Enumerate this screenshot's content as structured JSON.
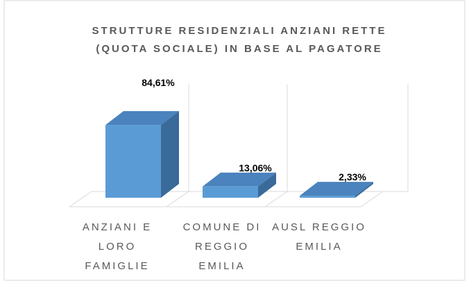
{
  "chart_data": {
    "type": "bar3d",
    "title": "STRUTTURE RESIDENZIALI ANZIANI RETTE (QUOTA SOCIALE) IN BASE AL PAGATORE",
    "categories": [
      "ANZIANI E LORO FAMIGLIE",
      "COMUNE DI REGGIO EMILIA",
      "AUSL REGGIO EMILIA"
    ],
    "values": [
      84.61,
      13.06,
      2.33
    ],
    "value_labels": [
      "84,61%",
      "13,06%",
      "2,33%"
    ],
    "color": "#5b9bd5"
  }
}
